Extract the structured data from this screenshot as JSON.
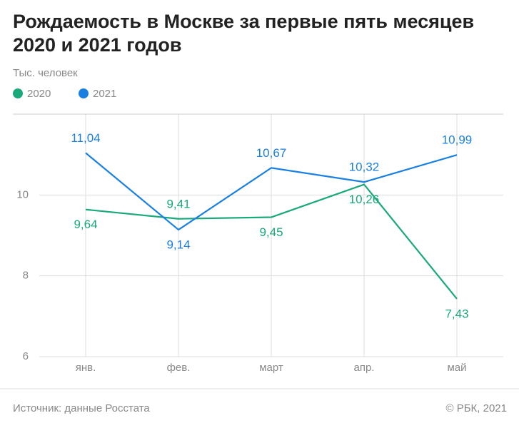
{
  "chart_data": {
    "type": "line",
    "title": "Рождаемость в Москве за первые пять месяцев 2020 и 2021 годов",
    "subtitle": "Тыс. человек",
    "source": "Источник: данные Росстата",
    "credit": "© РБК, 2021",
    "categories": [
      "янв.",
      "фев.",
      "март",
      "апр.",
      "май"
    ],
    "series": [
      {
        "name": "2020",
        "color": "#1aa97a",
        "values": [
          9.64,
          9.41,
          9.45,
          10.26,
          7.43
        ],
        "value_labels": [
          "9,64",
          "9,41",
          "9,45",
          "10,26",
          "7,43"
        ]
      },
      {
        "name": "2021",
        "color": "#1a7fe3",
        "values": [
          11.04,
          9.14,
          10.67,
          10.32,
          10.99
        ],
        "value_labels": [
          "11,04",
          "9,14",
          "10,67",
          "10,32",
          "10,99"
        ]
      }
    ],
    "ylim": [
      6,
      12
    ],
    "yticks": [
      6,
      8,
      10
    ],
    "grid": true
  }
}
